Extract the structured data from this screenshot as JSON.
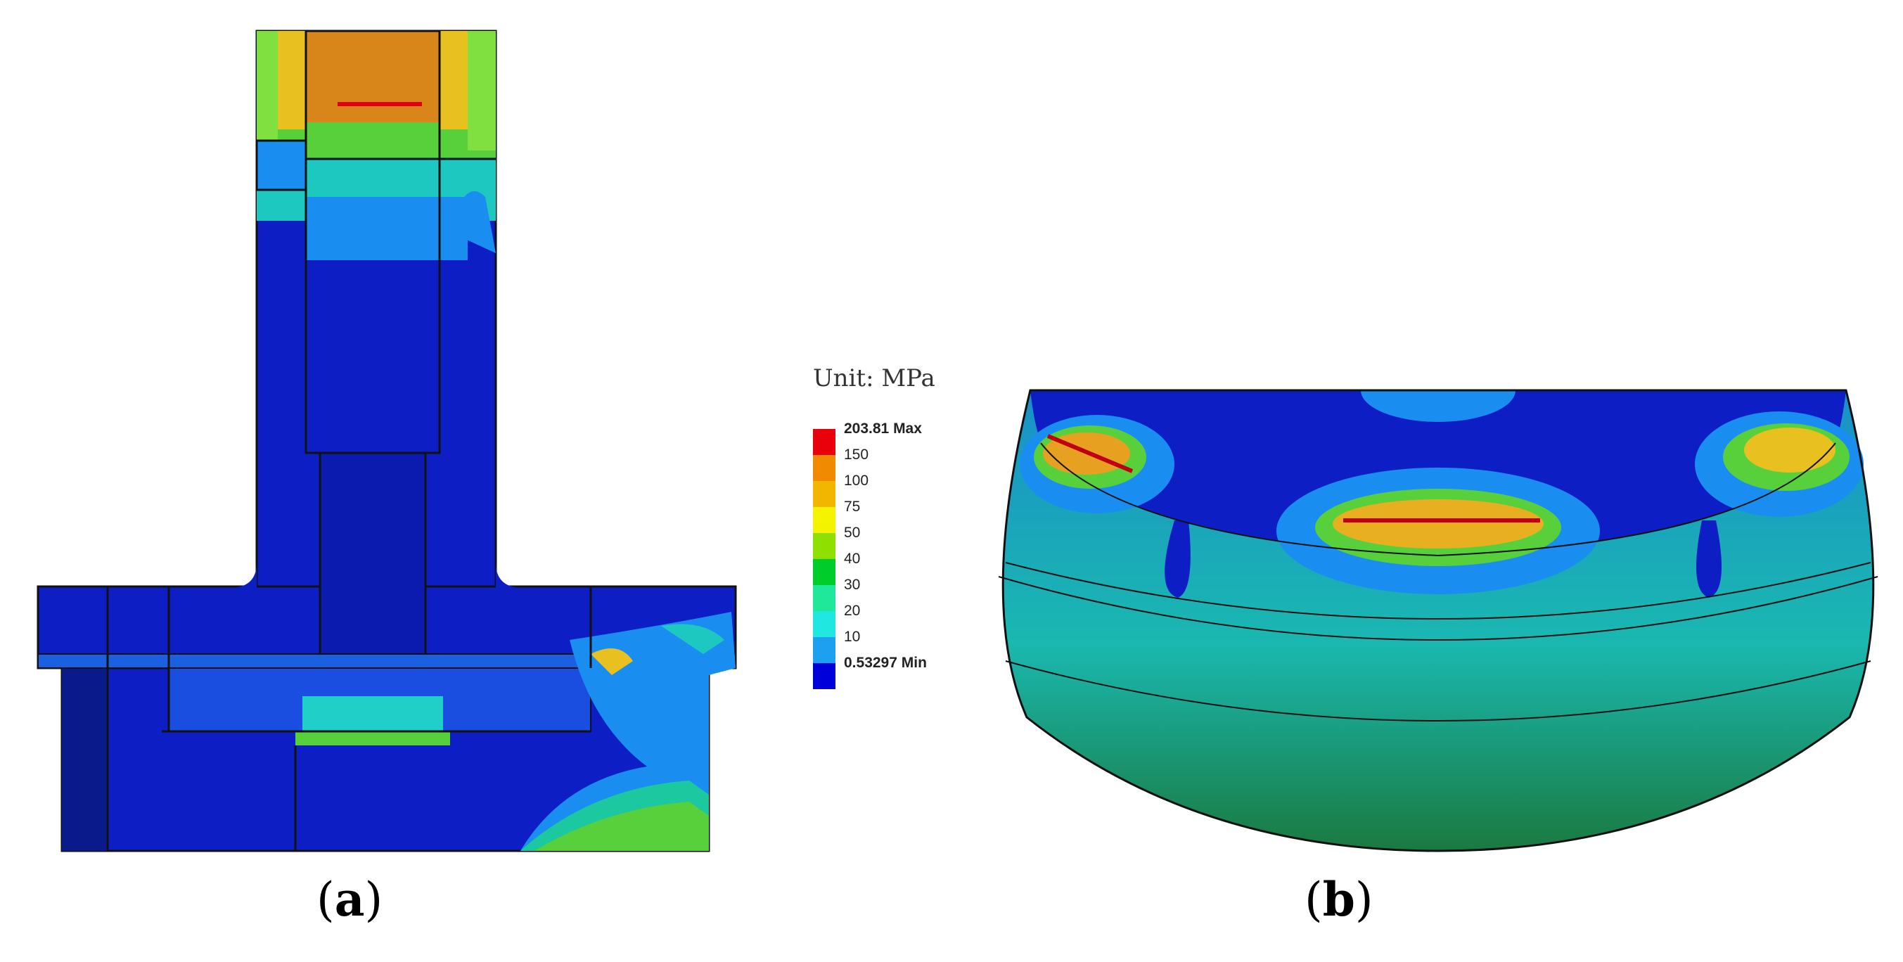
{
  "legend": {
    "title": "Unit: MPa",
    "levels": [
      {
        "label": "203.81 Max",
        "color": "#e8000b",
        "bold": true
      },
      {
        "label": "150",
        "color": "#f08a00",
        "bold": false
      },
      {
        "label": "100",
        "color": "#f2b500",
        "bold": false
      },
      {
        "label": "75",
        "color": "#f3f300",
        "bold": false
      },
      {
        "label": "50",
        "color": "#8fe000",
        "bold": false
      },
      {
        "label": "40",
        "color": "#00cc2a",
        "bold": false
      },
      {
        "label": "30",
        "color": "#20e89a",
        "bold": false
      },
      {
        "label": "20",
        "color": "#20e8e0",
        "bold": false
      },
      {
        "label": "10",
        "color": "#1ea0f0",
        "bold": false
      },
      {
        "label": "0.53297 Min",
        "color": "#0000d8",
        "bold": true
      }
    ]
  },
  "captions": {
    "a": "a",
    "b": "b"
  },
  "colors": {
    "background": "#ffffff",
    "low_stress": "#0d1fc4",
    "outline": "#111111"
  }
}
